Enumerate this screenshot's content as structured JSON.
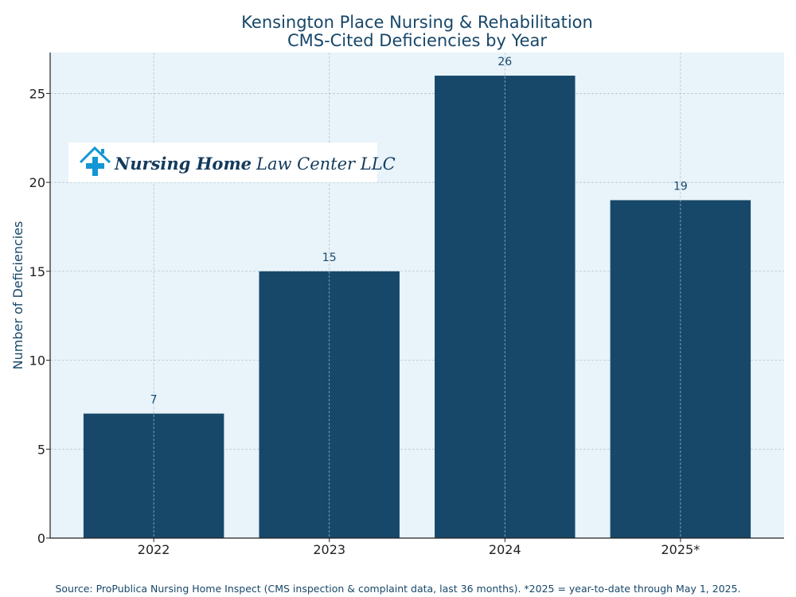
{
  "chart_data": {
    "type": "bar",
    "title": [
      "Kensington Place Nursing & Rehabilitation",
      "CMS-Cited Deficiencies by Year"
    ],
    "xlabel": "",
    "ylabel": "Number of Deficiencies",
    "categories": [
      "2022",
      "2023",
      "2024",
      "2025*"
    ],
    "values": [
      7,
      15,
      26,
      19
    ],
    "data_labels": [
      "7",
      "15",
      "26",
      "19"
    ],
    "ylim": [
      0,
      27.3
    ],
    "yticks": [
      0,
      5,
      10,
      15,
      20,
      25
    ],
    "grid": true,
    "colors": {
      "bar": "#174869",
      "plot_bg": "#e8f3fa",
      "text": "#174769",
      "logo_icon": "#1296d4"
    },
    "footnote": "Source: ProPublica Nursing Home Inspect (CMS inspection & complaint data, last 36 months). *2025 = year-to-date through May 1, 2025."
  },
  "logo": {
    "bold": "Nursing Home",
    "regular": "Law Center LLC"
  }
}
